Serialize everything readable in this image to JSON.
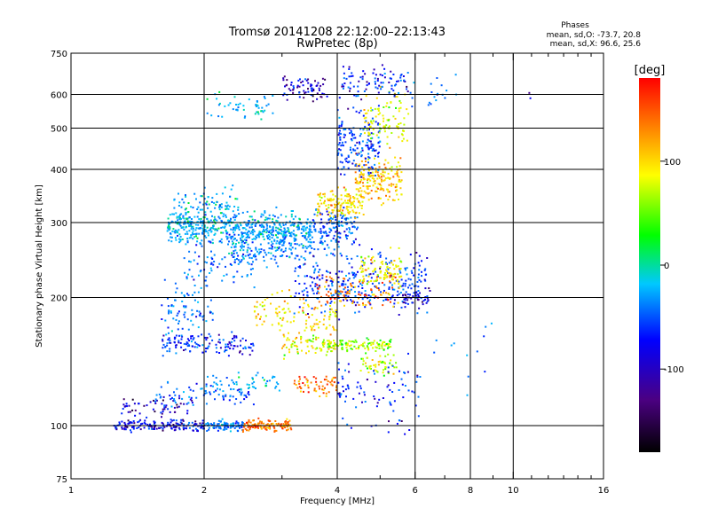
{
  "chart_data": {
    "type": "scatter",
    "title": "Tromsø 20141208 22:12:00–22:13:43",
    "subtitle": "RwPretec (8p)",
    "xlabel": "Frequency [MHz]",
    "ylabel": "Stationary phase Virtual Height [km]",
    "x_scale": "log",
    "y_scale": "log",
    "xlim": [
      1,
      16
    ],
    "ylim": [
      75,
      750
    ],
    "x_ticks": [
      1,
      2,
      4,
      6,
      8,
      10,
      16
    ],
    "x_tick_labels": [
      "1",
      "2",
      "4",
      "6",
      "8",
      "10",
      "16"
    ],
    "x_minor_ticks": [
      3,
      5,
      7,
      9,
      11,
      12,
      13,
      14,
      15
    ],
    "y_ticks": [
      75,
      100,
      200,
      300,
      400,
      500,
      600,
      750
    ],
    "y_tick_labels": [
      "75",
      "100",
      "200",
      "300",
      "400",
      "500",
      "600",
      "750"
    ],
    "grid": true,
    "phase_stats": {
      "heading": "Phases",
      "line_o": "mean, sd,O: -73.7, 20.8",
      "line_x": "mean, sd,X:  96.6, 25.6"
    },
    "colorbar": {
      "label": "[deg]",
      "min": -180,
      "max": 180,
      "ticks": [
        100,
        0,
        -100
      ],
      "tick_labels": [
        "100",
        "0",
        "-100"
      ]
    },
    "series": [
      {
        "x_range": [
          1.25,
          2.0
        ],
        "y": 100,
        "phase": -100,
        "spread": 0.015,
        "n": 160
      },
      {
        "x_range": [
          2.0,
          2.45
        ],
        "y": 100,
        "phase": -60,
        "spread": 0.015,
        "n": 90
      },
      {
        "x_range": [
          2.45,
          3.15
        ],
        "y": 100,
        "phase": 140,
        "spread": 0.015,
        "n": 120
      },
      {
        "x_range": [
          1.3,
          1.9
        ],
        "y": 110,
        "phase": -110,
        "spread": 0.03,
        "n": 60
      },
      {
        "x_range": [
          1.55,
          2.6
        ],
        "y": 118,
        "phase": -70,
        "spread": 0.03,
        "n": 70
      },
      {
        "x_range": [
          2.0,
          3.0
        ],
        "y": 125,
        "phase": -40,
        "spread": 0.03,
        "n": 60
      },
      {
        "x_range": [
          1.6,
          2.6
        ],
        "y": 155,
        "phase": -90,
        "spread": 0.03,
        "n": 130
      },
      {
        "x_range": [
          3.0,
          4.0
        ],
        "y": 155,
        "phase": 80,
        "spread": 0.03,
        "n": 70
      },
      {
        "x_range": [
          3.8,
          5.3
        ],
        "y": 155,
        "phase": 60,
        "spread": 0.015,
        "n": 110
      },
      {
        "x_range": [
          3.2,
          4.0
        ],
        "y": 125,
        "phase": 140,
        "spread": 0.03,
        "n": 60
      },
      {
        "x_range": [
          4.5,
          5.5
        ],
        "y": 140,
        "phase": 70,
        "spread": 0.03,
        "n": 50
      },
      {
        "x_range": [
          1.65,
          3.5
        ],
        "y": 290,
        "phase": -40,
        "spread": 0.04,
        "n": 500
      },
      {
        "x_range": [
          1.7,
          2.4
        ],
        "y": 320,
        "phase": -35,
        "spread": 0.06,
        "n": 120
      },
      {
        "x_range": [
          2.3,
          3.5
        ],
        "y": 265,
        "phase": -50,
        "spread": 0.05,
        "n": 200
      },
      {
        "x_range": [
          3.5,
          4.5
        ],
        "y": 290,
        "phase": -70,
        "spread": 0.06,
        "n": 150
      },
      {
        "x_range": [
          3.6,
          4.6
        ],
        "y": 330,
        "phase": 100,
        "spread": 0.04,
        "n": 140
      },
      {
        "x_range": [
          4.4,
          5.6
        ],
        "y": 380,
        "phase": 110,
        "spread": 0.06,
        "n": 180
      },
      {
        "x_range": [
          4.0,
          5.0
        ],
        "y": 460,
        "phase": -80,
        "spread": 0.09,
        "n": 170
      },
      {
        "x_range": [
          4.6,
          5.8
        ],
        "y": 520,
        "phase": 80,
        "spread": 0.07,
        "n": 100
      },
      {
        "x_range": [
          3.0,
          3.8
        ],
        "y": 620,
        "phase": -110,
        "spread": 0.03,
        "n": 70
      },
      {
        "x_range": [
          2.0,
          2.9
        ],
        "y": 560,
        "phase": -30,
        "spread": 0.03,
        "n": 50
      },
      {
        "x_range": [
          4.0,
          5.8
        ],
        "y": 640,
        "phase": -90,
        "spread": 0.04,
        "n": 90
      },
      {
        "x_range": [
          3.2,
          6.4
        ],
        "y": 215,
        "phase": -80,
        "spread": 0.08,
        "n": 300
      },
      {
        "x_range": [
          3.6,
          5.5
        ],
        "y": 205,
        "phase": 140,
        "spread": 0.05,
        "n": 90
      },
      {
        "x_range": [
          4.5,
          5.6
        ],
        "y": 230,
        "phase": 90,
        "spread": 0.05,
        "n": 100
      },
      {
        "x_range": [
          2.6,
          4.0
        ],
        "y": 180,
        "phase": 100,
        "spread": 0.06,
        "n": 120
      },
      {
        "x_range": [
          1.8,
          2.6
        ],
        "y": 240,
        "phase": -60,
        "spread": 0.07,
        "n": 80
      },
      {
        "x_range": [
          1.6,
          2.1
        ],
        "y": 185,
        "phase": -60,
        "spread": 0.07,
        "n": 80
      },
      {
        "x_range": [
          5.6,
          6.5
        ],
        "y": 200,
        "phase": -110,
        "spread": 0.02,
        "n": 40
      },
      {
        "x_range": [
          4.0,
          6.2
        ],
        "y": 120,
        "phase": -90,
        "spread": 0.1,
        "n": 90
      },
      {
        "x_range": [
          5.8,
          7.5
        ],
        "y": 600,
        "phase": -60,
        "spread": 0.06,
        "n": 20
      },
      {
        "x_range": [
          6.5,
          9.5
        ],
        "y": 150,
        "phase": -50,
        "spread": 0.1,
        "n": 12
      },
      {
        "x_range": [
          10.5,
          11.0
        ],
        "y": 595,
        "phase": -100,
        "spread": 0.01,
        "n": 2
      }
    ]
  }
}
